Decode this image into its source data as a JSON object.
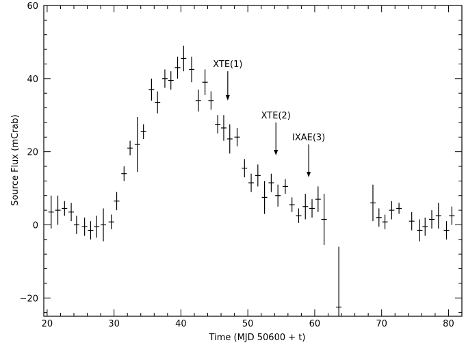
{
  "chart_data": {
    "type": "scatter",
    "title": "",
    "xlabel": "Time (MJD 50600 + t)",
    "ylabel": "Source Flux (mCrab)",
    "xlim": [
      19.5,
      82
    ],
    "ylim": [
      -25,
      60
    ],
    "xticks": [
      20,
      30,
      40,
      50,
      60,
      70,
      80
    ],
    "yticks": [
      -20,
      0,
      20,
      40,
      60
    ],
    "grid": false,
    "series": [
      {
        "points": [
          {
            "x": 20.6,
            "y": 3.5,
            "err": 4.5
          },
          {
            "x": 21.6,
            "y": 4.0,
            "err": 4.0
          },
          {
            "x": 22.6,
            "y": 4.5,
            "err": 2.0
          },
          {
            "x": 23.6,
            "y": 3.5,
            "err": 2.5
          },
          {
            "x": 24.4,
            "y": 0.0,
            "err": 2.5
          },
          {
            "x": 25.6,
            "y": -0.5,
            "err": 2.5
          },
          {
            "x": 26.5,
            "y": -1.5,
            "err": 2.5
          },
          {
            "x": 27.4,
            "y": -0.5,
            "err": 3.0
          },
          {
            "x": 28.4,
            "y": 0.0,
            "err": 4.5
          },
          {
            "x": 29.6,
            "y": 0.8,
            "err": 2.0
          },
          {
            "x": 30.4,
            "y": 6.5,
            "err": 2.5
          },
          {
            "x": 31.5,
            "y": 14.0,
            "err": 2.0
          },
          {
            "x": 32.4,
            "y": 21.0,
            "err": 2.0
          },
          {
            "x": 33.5,
            "y": 22.0,
            "err": 7.5
          },
          {
            "x": 34.4,
            "y": 25.5,
            "err": 2.0
          },
          {
            "x": 35.6,
            "y": 37.0,
            "err": 3.0
          },
          {
            "x": 36.5,
            "y": 33.5,
            "err": 3.0
          },
          {
            "x": 37.6,
            "y": 40.0,
            "err": 2.5
          },
          {
            "x": 38.5,
            "y": 39.5,
            "err": 2.5
          },
          {
            "x": 39.5,
            "y": 43.0,
            "err": 3.0
          },
          {
            "x": 40.4,
            "y": 45.5,
            "err": 3.5
          },
          {
            "x": 41.6,
            "y": 42.5,
            "err": 3.5
          },
          {
            "x": 42.6,
            "y": 34.0,
            "err": 3.0
          },
          {
            "x": 43.6,
            "y": 39.0,
            "err": 3.5
          },
          {
            "x": 44.5,
            "y": 34.0,
            "err": 2.5
          },
          {
            "x": 45.5,
            "y": 27.5,
            "err": 2.5
          },
          {
            "x": 46.4,
            "y": 26.5,
            "err": 3.5
          },
          {
            "x": 47.3,
            "y": 23.5,
            "err": 4.0
          },
          {
            "x": 48.4,
            "y": 24.0,
            "err": 2.5
          },
          {
            "x": 49.5,
            "y": 15.5,
            "err": 2.5
          },
          {
            "x": 50.5,
            "y": 11.5,
            "err": 2.5
          },
          {
            "x": 51.5,
            "y": 13.5,
            "err": 3.0
          },
          {
            "x": 52.5,
            "y": 7.5,
            "err": 4.5
          },
          {
            "x": 53.5,
            "y": 11.5,
            "err": 2.5
          },
          {
            "x": 54.5,
            "y": 8.0,
            "err": 3.0
          },
          {
            "x": 55.6,
            "y": 10.5,
            "err": 2.0
          },
          {
            "x": 56.6,
            "y": 5.5,
            "err": 2.0
          },
          {
            "x": 57.6,
            "y": 2.5,
            "err": 2.0
          },
          {
            "x": 58.6,
            "y": 5.0,
            "err": 3.5
          },
          {
            "x": 59.6,
            "y": 4.5,
            "err": 2.5
          },
          {
            "x": 60.5,
            "y": 7.0,
            "err": 3.5
          },
          {
            "x": 61.4,
            "y": 1.5,
            "err": 7.0
          },
          {
            "x": 63.6,
            "y": -22.5,
            "err": 16.5
          },
          {
            "x": 68.7,
            "y": 6.0,
            "err": 5.0
          },
          {
            "x": 69.6,
            "y": 2.0,
            "err": 2.5
          },
          {
            "x": 70.5,
            "y": 0.8,
            "err": 2.0
          },
          {
            "x": 71.5,
            "y": 4.0,
            "err": 2.5
          },
          {
            "x": 72.6,
            "y": 4.5,
            "err": 1.5
          },
          {
            "x": 74.5,
            "y": 1.0,
            "err": 2.5
          },
          {
            "x": 75.7,
            "y": -1.5,
            "err": 3.0
          },
          {
            "x": 76.5,
            "y": -0.5,
            "err": 2.5
          },
          {
            "x": 77.5,
            "y": 1.5,
            "err": 2.5
          },
          {
            "x": 78.5,
            "y": 2.5,
            "err": 3.5
          },
          {
            "x": 79.7,
            "y": -1.5,
            "err": 2.5
          },
          {
            "x": 80.5,
            "y": 2.5,
            "err": 2.5
          }
        ]
      }
    ],
    "annotations": [
      {
        "text": "XTE(1)",
        "x": 47,
        "y_from": 42,
        "y_to": 34
      },
      {
        "text": "XTE(2)",
        "x": 54.2,
        "y_from": 28,
        "y_to": 19
      },
      {
        "text": "IXAE(3)",
        "x": 59.1,
        "y_from": 22,
        "y_to": 13
      }
    ]
  }
}
